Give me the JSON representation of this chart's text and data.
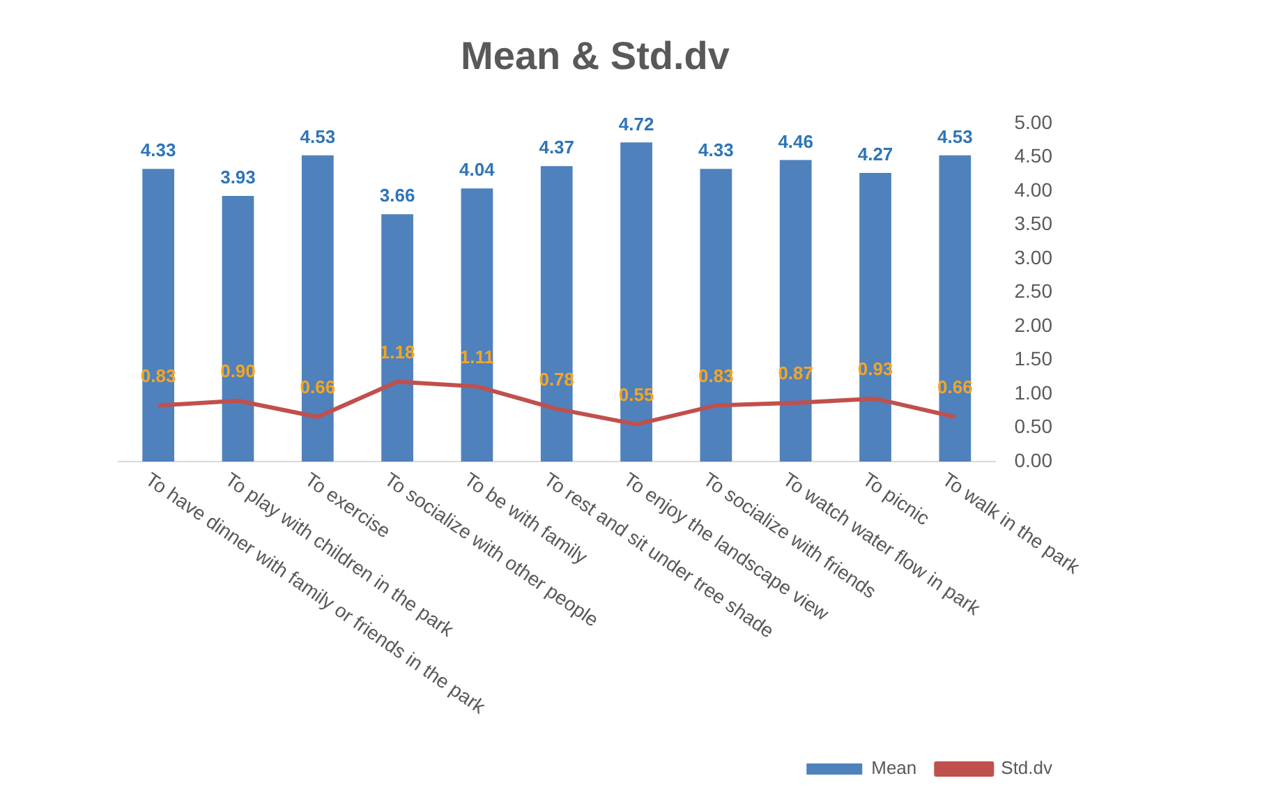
{
  "chart_data": {
    "type": "bar",
    "title": "Mean & Std.dv",
    "categories": [
      "To have dinner with family or friends in the park",
      "To play with children in the park",
      "To exercise",
      "To socialize with other people",
      "To be with family",
      "To rest and sit under tree shade",
      "To enjoy the landscape view",
      "To socialize with friends",
      "To watch water flow in park",
      "To picnic",
      "To walk in the park"
    ],
    "series": [
      {
        "name": "Mean",
        "color": "#4f81bd",
        "values": [
          4.33,
          3.93,
          4.53,
          3.66,
          4.04,
          4.37,
          4.72,
          4.33,
          4.46,
          4.27,
          4.53
        ],
        "value_labels": [
          "4.33",
          "3.93",
          "4.53",
          "3.66",
          "4.04",
          "4.37",
          "4.72",
          "4.33",
          "4.46",
          "4.27",
          "4.53"
        ]
      },
      {
        "name": "Std.dv",
        "type": "line",
        "color": "#c0504d",
        "values": [
          0.83,
          0.9,
          0.66,
          1.18,
          1.11,
          0.78,
          0.55,
          0.83,
          0.87,
          0.93,
          0.66
        ],
        "value_labels": [
          "0.83",
          "0.90",
          "0.66",
          "1.18",
          "1.11",
          "0.78",
          "0.55",
          "0.83",
          "0.87",
          "0.93",
          "0.66"
        ]
      }
    ],
    "ylim": [
      0,
      5
    ],
    "yticks": [
      {
        "value": 0,
        "label": "0.00"
      },
      {
        "value": 0.5,
        "label": "0.50"
      },
      {
        "value": 1,
        "label": "1.00"
      },
      {
        "value": 1.5,
        "label": "1.50"
      },
      {
        "value": 2,
        "label": "2.00"
      },
      {
        "value": 2.5,
        "label": "2.50"
      },
      {
        "value": 3,
        "label": "3.00"
      },
      {
        "value": 3.5,
        "label": "3.50"
      },
      {
        "value": 4,
        "label": "4.00"
      },
      {
        "value": 4.5,
        "label": "4.50"
      },
      {
        "value": 5,
        "label": "5.00"
      }
    ],
    "legend": "bottom right",
    "grid": false,
    "marker": "none",
    "line_style": "solid"
  }
}
